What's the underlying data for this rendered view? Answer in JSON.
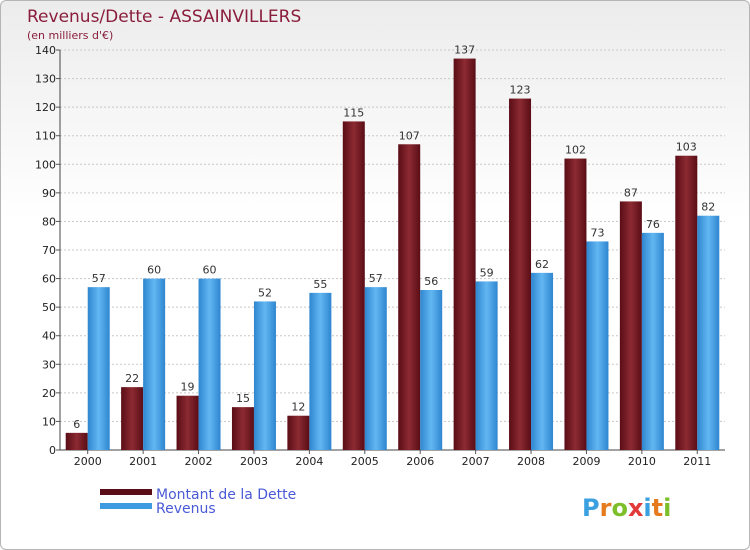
{
  "chart_data": {
    "type": "bar",
    "title": "Revenus/Dette - ASSAINVILLERS",
    "subtitle": "(en milliers d'€)",
    "categories": [
      "2000",
      "2001",
      "2002",
      "2003",
      "2004",
      "2005",
      "2006",
      "2007",
      "2008",
      "2009",
      "2010",
      "2011"
    ],
    "series": [
      {
        "name": "Montant de la Dette",
        "color": "#7a1a22",
        "values": [
          6,
          22,
          19,
          15,
          12,
          115,
          107,
          137,
          123,
          102,
          87,
          103
        ]
      },
      {
        "name": "Revenus",
        "color": "#4aa3e6",
        "values": [
          57,
          60,
          60,
          52,
          55,
          57,
          56,
          59,
          62,
          73,
          76,
          82
        ]
      }
    ],
    "ylim": [
      0,
      140
    ],
    "yticks": [
      0,
      10,
      20,
      30,
      40,
      50,
      60,
      70,
      80,
      90,
      100,
      110,
      120,
      130,
      140
    ],
    "grid": true,
    "legend_position": "bottom-left"
  },
  "brand": {
    "letters": [
      "P",
      "r",
      "o",
      "x",
      "i",
      "t",
      "i"
    ],
    "colors": [
      "#3aa0e0",
      "#e67a1e",
      "#7cbf2a",
      "#e23a3a",
      "#3aa0e0",
      "#e67a1e",
      "#7cbf2a"
    ]
  }
}
